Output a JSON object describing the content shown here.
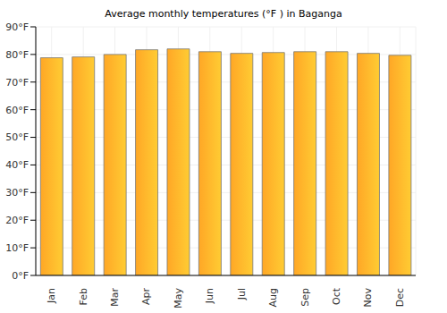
{
  "chart_data": {
    "type": "bar",
    "title": "Average monthly temperatures (°F ) in Baganga",
    "categories": [
      "Jan",
      "Feb",
      "Mar",
      "Apr",
      "May",
      "Jun",
      "Jul",
      "Aug",
      "Sep",
      "Oct",
      "Nov",
      "Dec"
    ],
    "values": [
      78.8,
      79.1,
      80.0,
      81.7,
      82.0,
      81.0,
      80.4,
      80.7,
      81.0,
      81.0,
      80.4,
      79.7
    ],
    "color": "#ffa726",
    "ylim": [
      0,
      90
    ],
    "yticks": [
      {
        "value": 0,
        "label": "0°F"
      },
      {
        "value": 10,
        "label": "10°F"
      },
      {
        "value": 20,
        "label": "20°F"
      },
      {
        "value": 30,
        "label": "30°F"
      },
      {
        "value": 40,
        "label": "40°F"
      },
      {
        "value": 50,
        "label": "50°F"
      },
      {
        "value": 60,
        "label": "60°F"
      },
      {
        "value": 70,
        "label": "70°F"
      },
      {
        "value": 80,
        "label": "80°F"
      },
      {
        "value": 90,
        "label": "90°F"
      }
    ],
    "grid": true
  }
}
